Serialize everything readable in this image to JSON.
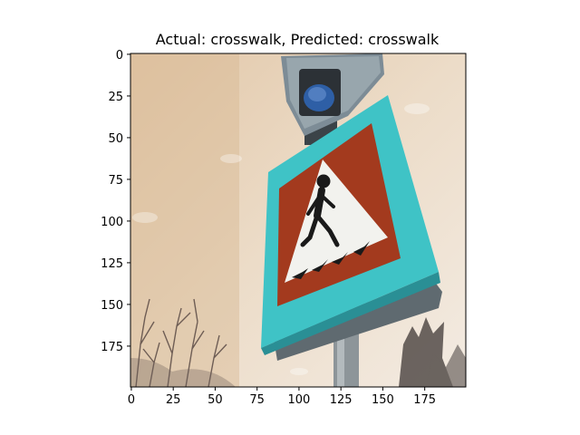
{
  "title": "Actual: crosswalk, Predicted: crosswalk",
  "axes": {
    "x_ticks": [
      0,
      25,
      50,
      75,
      100,
      125,
      150,
      175
    ],
    "y_ticks": [
      0,
      25,
      50,
      75,
      100,
      125,
      150,
      175
    ],
    "x_range": [
      0,
      200
    ],
    "y_range": [
      0,
      200
    ],
    "y_inverted": true
  },
  "image": {
    "subject": "crosswalk-sign",
    "colors": {
      "sky": "#e9d6bf",
      "sky_dark": "#d9bb97",
      "frame": "#3fc3c6",
      "frame_shadow": "#2a8f95",
      "inner_red": "#a33a1e",
      "triangle_white": "#f2f2ee",
      "pedestrian": "#1a1a1a",
      "panel_back": "#77838b",
      "post": "#8d9599",
      "lamp_blue": "#2e5fa6",
      "tree": "#5a4a45"
    }
  }
}
